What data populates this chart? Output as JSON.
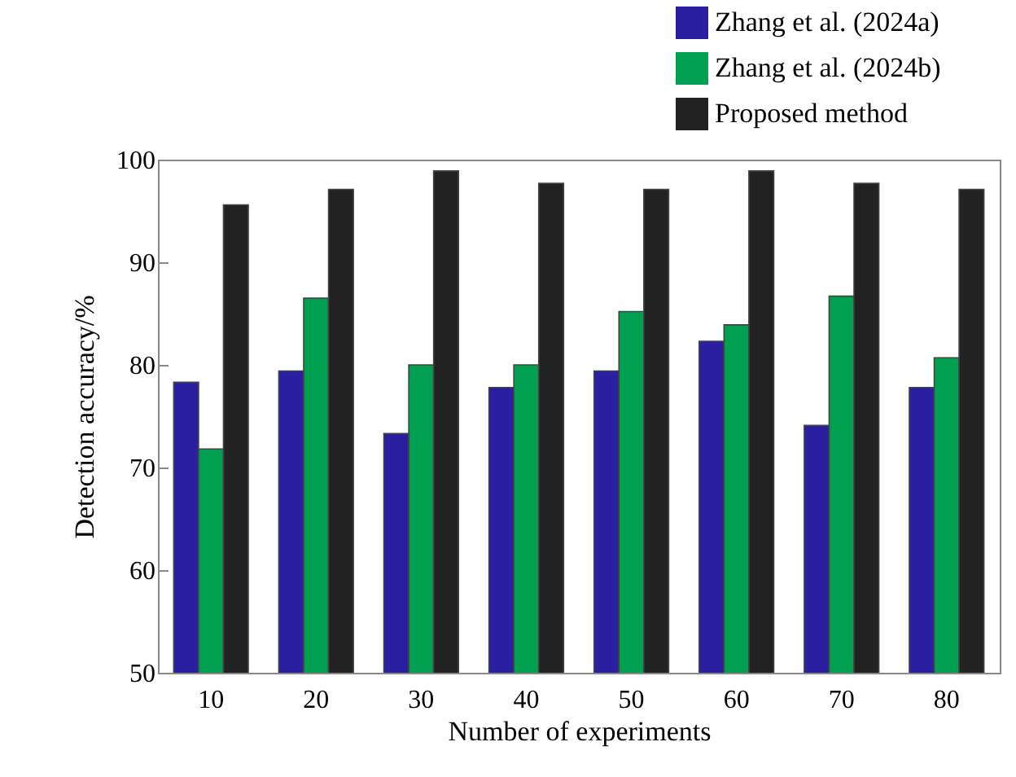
{
  "chart_data": {
    "type": "bar",
    "xlabel": "Number of experiments",
    "ylabel": "Detection accuracy/%",
    "categories": [
      "10",
      "20",
      "30",
      "40",
      "50",
      "60",
      "70",
      "80"
    ],
    "series": [
      {
        "name": "Zhang et al. (2024a)",
        "color": "#2a1fa0",
        "values": [
          78.3,
          79.4,
          73.3,
          77.8,
          79.4,
          82.3,
          74.1,
          77.8
        ]
      },
      {
        "name": "Zhang et al. (2024b)",
        "color": "#00a050",
        "values": [
          71.8,
          86.5,
          80.0,
          80.0,
          85.2,
          83.9,
          86.7,
          80.7
        ]
      },
      {
        "name": "Proposed method",
        "color": "#222222",
        "values": [
          95.6,
          97.1,
          98.9,
          97.7,
          97.1,
          98.9,
          97.7,
          97.1
        ]
      }
    ],
    "ylim": [
      50,
      100
    ],
    "yticks": [
      50,
      60,
      70,
      80,
      90,
      100
    ],
    "grid": false,
    "legend": "top right"
  }
}
